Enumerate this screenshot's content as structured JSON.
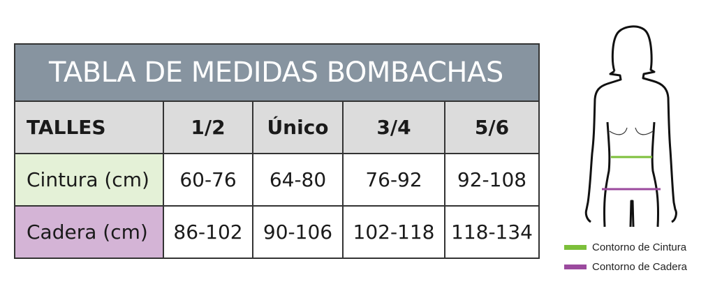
{
  "table": {
    "title": "TABLA DE MEDIDAS BOMBACHAS",
    "header": [
      "TALLES",
      "1/2",
      "Único",
      "3/4",
      "5/6"
    ],
    "rows": [
      {
        "label": "Cintura (cm)",
        "values": [
          "60-76",
          "64-80",
          "76-92",
          "92-108"
        ]
      },
      {
        "label": "Cadera (cm)",
        "values": [
          "86-102",
          "90-106",
          "102-118",
          "118-134"
        ]
      }
    ]
  },
  "legend": [
    {
      "label": "Contorno de Cintura",
      "color": "#7cbf3a"
    },
    {
      "label": "Contorno de Cadera",
      "color": "#9b4a9e"
    }
  ],
  "colors": {
    "title_bg": "#8794a0",
    "header_bg": "#dcdcdc",
    "cintura_bg": "#e4f1d7",
    "cadera_bg": "#d4b4d6"
  }
}
